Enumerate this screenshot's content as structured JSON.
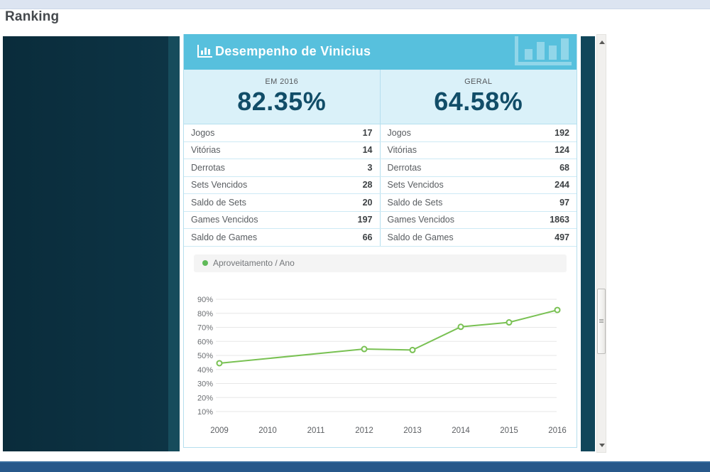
{
  "page": {
    "title": "Ranking"
  },
  "modal": {
    "title": "Desempenho de Vinicius",
    "stats": [
      {
        "label": "EM 2016",
        "value": "82.35%"
      },
      {
        "label": "GERAL",
        "value": "64.58%"
      }
    ],
    "table": {
      "left": [
        [
          "Jogos",
          "17"
        ],
        [
          "Vitórias",
          "14"
        ],
        [
          "Derrotas",
          "3"
        ],
        [
          "Sets Vencidos",
          "28"
        ],
        [
          "Saldo de Sets",
          "20"
        ],
        [
          "Games Vencidos",
          "197"
        ],
        [
          "Saldo de Games",
          "66"
        ]
      ],
      "right": [
        [
          "Jogos",
          "192"
        ],
        [
          "Vitórias",
          "124"
        ],
        [
          "Derrotas",
          "68"
        ],
        [
          "Sets Vencidos",
          "244"
        ],
        [
          "Saldo de Sets",
          "97"
        ],
        [
          "Games Vencidos",
          "1863"
        ],
        [
          "Saldo de Games",
          "497"
        ]
      ]
    }
  },
  "chart_data": {
    "type": "line",
    "legend_label": "Aproveitamento / Ano",
    "x": [
      2009,
      2010,
      2011,
      2012,
      2013,
      2014,
      2015,
      2016
    ],
    "series": [
      {
        "name": "Aproveitamento / Ano",
        "values": [
          44.44,
          null,
          null,
          54.55,
          53.85,
          70.37,
          73.53,
          82.35
        ]
      }
    ],
    "yticks": [
      90,
      80,
      70,
      60,
      50,
      40,
      30,
      20,
      10
    ],
    "ytick_suffix": "%",
    "ylim": [
      0,
      100
    ],
    "grid": "horizontal",
    "legend_position": "top-left",
    "line_color": "#79c153",
    "marker": "circle-open"
  },
  "icons": {
    "header": "bar-chart-icon",
    "watermark": "bar-chart-icon",
    "legend_marker": "green-dot"
  },
  "colors": {
    "header_teal": "#57c0dd",
    "stats_bg": "#daf1f9",
    "stat_value": "#114d68",
    "card_border": "#b5dfee",
    "line_green": "#79c153",
    "overlay_dark": "#0b3040",
    "footer_blue": "#27588a",
    "top_strip": "#dce4f1"
  }
}
